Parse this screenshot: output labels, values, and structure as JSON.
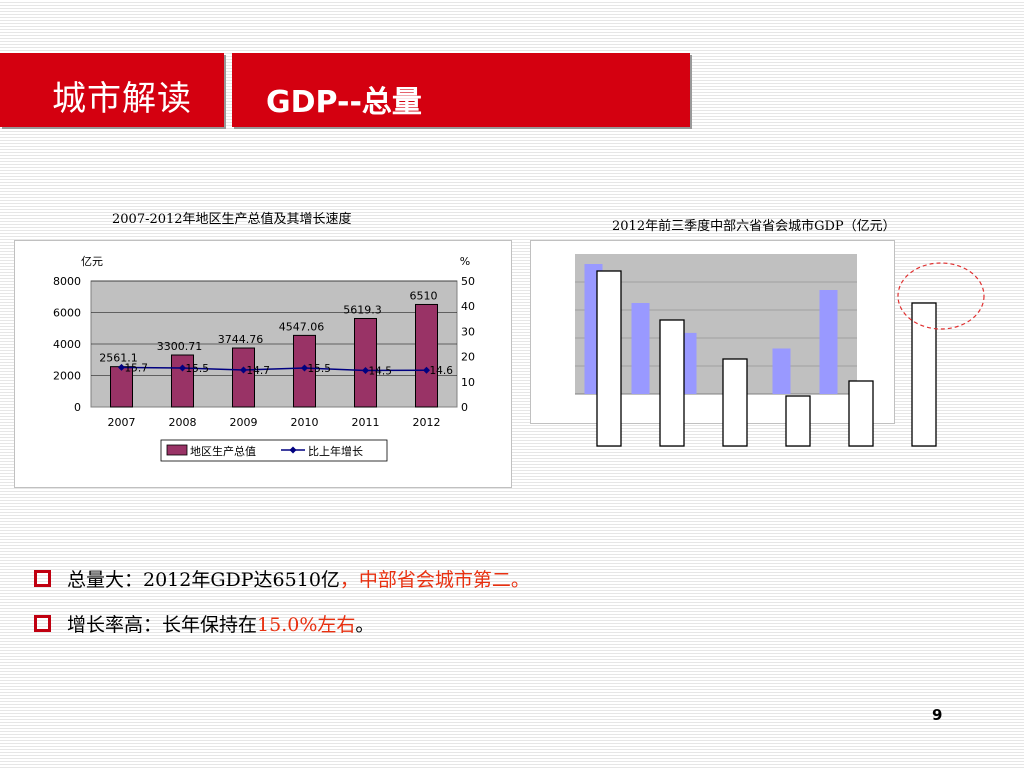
{
  "header": {
    "left_title": "城市解读",
    "right_title": "GDP--总量"
  },
  "colors": {
    "brand_red": "#d40010",
    "bar_purple": "#993366",
    "line_blue": "#000080",
    "bar_lavender": "#9999ff"
  },
  "chart_data": [
    {
      "type": "bar",
      "title": "2007-2012年地区生产总值及其增长速度",
      "categories": [
        "2007",
        "2008",
        "2009",
        "2010",
        "2011",
        "2012"
      ],
      "series": [
        {
          "name": "地区生产总值",
          "type": "bar",
          "axis": "left",
          "values": [
            2561.1,
            3300.71,
            3744.76,
            4547.06,
            5619.3,
            6510
          ]
        },
        {
          "name": "比上年增长",
          "type": "line",
          "axis": "right",
          "values": [
            15.7,
            15.5,
            14.7,
            15.5,
            14.5,
            14.6
          ]
        }
      ],
      "ylabel": "亿元",
      "ylabel2": "%",
      "ylim": [
        0,
        8000
      ],
      "yticks": [
        "0",
        "2000",
        "4000",
        "6000",
        "8000"
      ],
      "ylim2": [
        0,
        50
      ],
      "yticks2": [
        "0",
        "10",
        "20",
        "30",
        "40",
        "50"
      ],
      "legend": [
        "地区生产总值",
        "比上年增长"
      ],
      "bar_labels": [
        "2561.1",
        "3300.71",
        "3744.76",
        "4547.06",
        "5619.3",
        "6510"
      ],
      "line_labels": [
        "15.7",
        "15.5",
        "14.7",
        "15.5",
        "14.5",
        "14.6"
      ]
    },
    {
      "type": "bar",
      "title": "2012年前三季度中部六省省会城市GDP（亿元）",
      "series": [
        {
          "name": "GDP",
          "values": [
            1.0,
            0.7,
            0.47,
            0.27,
            0.35,
            0.8
          ]
        }
      ]
    }
  ],
  "bullets": [
    {
      "plain": "总量大：2012年GDP达6510亿",
      "highlight": "，中部省会城市第二。",
      "tail": ""
    },
    {
      "plain": "增长率高：长年保持在",
      "highlight": "15.0%左右",
      "tail": "。"
    }
  ],
  "page_number": "9"
}
